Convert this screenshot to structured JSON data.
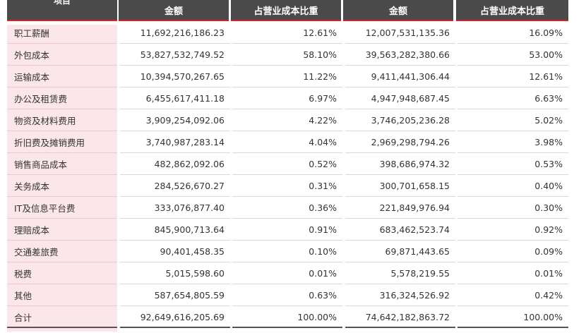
{
  "table": {
    "headers": [
      "项目",
      "金额",
      "占营业成本比重",
      "金额",
      "占营业成本比重"
    ],
    "rows": [
      {
        "item": "职工薪酬",
        "amount_a": "11,692,216,186.23",
        "pct_a": "12.61%",
        "amount_b": "12,007,531,135.36",
        "pct_b": "16.09%"
      },
      {
        "item": "外包成本",
        "amount_a": "53,827,532,749.52",
        "pct_a": "58.10%",
        "amount_b": "39,563,282,380.66",
        "pct_b": "53.00%"
      },
      {
        "item": "运输成本",
        "amount_a": "10,394,570,267.65",
        "pct_a": "11.22%",
        "amount_b": "9,411,441,306.44",
        "pct_b": "12.61%"
      },
      {
        "item": "办公及租赁费",
        "amount_a": "6,455,617,411.18",
        "pct_a": "6.97%",
        "amount_b": "4,947,948,687.45",
        "pct_b": "6.63%"
      },
      {
        "item": "物资及材料费用",
        "amount_a": "3,909,254,092.06",
        "pct_a": "4.22%",
        "amount_b": "3,746,205,236.28",
        "pct_b": "5.02%"
      },
      {
        "item": "折旧费及摊销费用",
        "amount_a": "3,740,987,283.14",
        "pct_a": "4.04%",
        "amount_b": "2,969,298,794.26",
        "pct_b": "3.98%"
      },
      {
        "item": "销售商品成本",
        "amount_a": "482,862,092.06",
        "pct_a": "0.52%",
        "amount_b": "398,686,974.32",
        "pct_b": "0.53%"
      },
      {
        "item": "关务成本",
        "amount_a": "284,526,670.27",
        "pct_a": "0.31%",
        "amount_b": "300,701,658.15",
        "pct_b": "0.40%"
      },
      {
        "item": "IT及信息平台费",
        "amount_a": "333,076,877.40",
        "pct_a": "0.36%",
        "amount_b": "221,849,976.94",
        "pct_b": "0.30%"
      },
      {
        "item": "理赔成本",
        "amount_a": "845,900,713.64",
        "pct_a": "0.91%",
        "amount_b": "683,462,523.74",
        "pct_b": "0.92%"
      },
      {
        "item": "交通差旅费",
        "amount_a": "90,401,458.35",
        "pct_a": "0.10%",
        "amount_b": "69,871,443.65",
        "pct_b": "0.09%"
      },
      {
        "item": "税费",
        "amount_a": "5,015,598.60",
        "pct_a": "0.01%",
        "amount_b": "5,578,219.55",
        "pct_b": "0.01%"
      },
      {
        "item": "其他",
        "amount_a": "587,654,805.59",
        "pct_a": "0.63%",
        "amount_b": "316,324,526.92",
        "pct_b": "0.42%"
      },
      {
        "item": "合计",
        "amount_a": "92,649,616,205.69",
        "pct_a": "100.00%",
        "amount_b": "74,642,182,863.72",
        "pct_b": "100.00%"
      }
    ]
  },
  "colors": {
    "header_bg": "#4a4a4a",
    "header_accent": "#c8252c",
    "label_bg": "#fbe6ea"
  }
}
